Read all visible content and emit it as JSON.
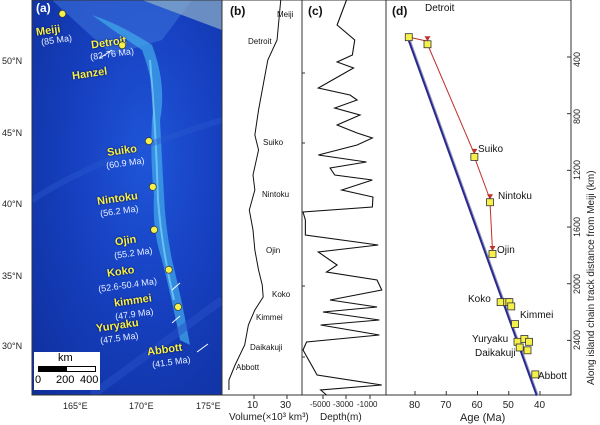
{
  "panels": {
    "a": "(a)",
    "b": "(b)",
    "c": "(c)",
    "d": "(d)"
  },
  "map": {
    "lat_ticks": [
      "50°N",
      "45°N",
      "40°N",
      "35°N",
      "30°N"
    ],
    "lon_ticks": [
      "165°E",
      "170°E",
      "175°E"
    ],
    "scale_unit": "km",
    "scale_labels": [
      "0",
      "200",
      "400"
    ],
    "volcanoes": [
      {
        "name": "Meiji",
        "age": "(85 Ma)",
        "lon": 163.9,
        "lat": 53.3
      },
      {
        "name": "Detroit",
        "age": "(82-76 Ma)",
        "lon": 168.4,
        "lat": 51.1
      },
      {
        "name": "Hanzel",
        "age": ""
      },
      {
        "name": "Suiko",
        "age": "(60.9 Ma)",
        "lon": 170.4,
        "lat": 44.4
      },
      {
        "name": "Nintoku",
        "age": "(56.2 Ma)",
        "lon": 170.7,
        "lat": 41.2
      },
      {
        "name": "Ojin",
        "age": "(55.2 Ma)",
        "lon": 170.8,
        "lat": 38.2
      },
      {
        "name": "Koko",
        "age": "(52.6-50.4 Ma)",
        "lon": 171.9,
        "lat": 35.4
      },
      {
        "name": "kimmei",
        "age": "(47.9 Ma)"
      },
      {
        "name": "Yuryaku",
        "age": "(47.5 Ma)",
        "lon": 172.6,
        "lat": 32.8
      },
      {
        "name": "Abbott",
        "age": "(41.5 Ma)"
      }
    ],
    "colors": {
      "marker": "#f5f04a",
      "label": "#f5f04a",
      "ocean": "#1640c0"
    }
  },
  "chart_data": [
    {
      "type": "line",
      "panel": "b",
      "xlabel": "Volume(×10³ km³)",
      "xticks": [
        "10",
        "30"
      ],
      "labels": [
        "Meiji",
        "Detroit",
        "Suiko",
        "Nintoku",
        "Ojin",
        "Koko",
        "Kimmei",
        "Daikakuji",
        "Abbott"
      ],
      "points": [
        [
          0,
          25
        ],
        [
          40,
          23
        ],
        [
          60,
          18
        ],
        [
          90,
          15
        ],
        [
          110,
          13
        ],
        [
          135,
          11
        ],
        [
          150,
          13
        ],
        [
          175,
          10
        ],
        [
          190,
          11
        ],
        [
          210,
          8
        ],
        [
          230,
          10
        ],
        [
          250,
          11
        ],
        [
          270,
          13
        ],
        [
          285,
          15
        ],
        [
          297,
          15.5
        ],
        [
          310,
          11
        ],
        [
          325,
          7.5
        ],
        [
          345,
          5.5
        ],
        [
          365,
          0.3
        ],
        [
          380,
          -3
        ],
        [
          390,
          -3
        ]
      ]
    },
    {
      "type": "line",
      "panel": "c",
      "xlabel": "Depth(m)",
      "xticks": [
        "-5000",
        "-3000",
        "-1000"
      ],
      "xlim": [
        -6700,
        300
      ],
      "profile_depth_m": [
        -3000,
        -3800,
        -2300,
        -2500,
        -3800,
        -2400,
        -4200,
        -5400,
        -2700,
        -2100,
        -4000,
        -1850,
        -3800,
        -2100,
        -800,
        -2100,
        -5400,
        -1300,
        -4400,
        -4000,
        -800,
        -3400,
        -750,
        -800,
        -6700,
        -6500,
        -6500,
        -300,
        -5400,
        -3800,
        -4700,
        -400,
        0,
        -4400,
        -400,
        -5000,
        -200,
        -5200,
        -200,
        -6400,
        -6700,
        -5500,
        0,
        -5200,
        -4700
      ],
      "profile_y_index": [
        0,
        25,
        40,
        55,
        62,
        68,
        80,
        88,
        95,
        100,
        108,
        115,
        125,
        133,
        138,
        145,
        155,
        162,
        168,
        175,
        180,
        190,
        197,
        207,
        212,
        220,
        235,
        245,
        252,
        265,
        272,
        280,
        290,
        300,
        307,
        312,
        320,
        325,
        335,
        342,
        350,
        375,
        385,
        390,
        395
      ]
    },
    {
      "type": "scatter",
      "panel": "d",
      "xlabel": "Age (Ma)",
      "ylabel": "Along island chain track distance from Meiji  (km)",
      "xticks": [
        "80",
        "70",
        "60",
        "50",
        "40"
      ],
      "yticks": [
        "400",
        "800",
        "1200",
        "1600",
        "2000",
        "2400"
      ],
      "xlim": [
        89,
        29
      ],
      "ylim": [
        0,
        2785
      ],
      "points": [
        {
          "age": 82,
          "d": 260
        },
        {
          "age": 76,
          "d": 310,
          "label": "Detroit"
        },
        {
          "age": 61,
          "d": 1105,
          "label": "Suiko"
        },
        {
          "age": 56,
          "d": 1425,
          "label": "Nintoku"
        },
        {
          "age": 55.2,
          "d": 1790,
          "label": "Ojin"
        },
        {
          "age": 52.6,
          "d": 2130,
          "label": "Koko"
        },
        {
          "age": 50.5,
          "d": 2130
        },
        {
          "age": 49.8,
          "d": 2130
        },
        {
          "age": 49.2,
          "d": 2160
        },
        {
          "age": 48,
          "d": 2285,
          "label": "Kimmei"
        },
        {
          "age": 47.2,
          "d": 2410,
          "label": "Yuryaku"
        },
        {
          "age": 46.5,
          "d": 2450,
          "label": "Daikakuji"
        },
        {
          "age": 45,
          "d": 2390
        },
        {
          "age": 43.5,
          "d": 2410
        },
        {
          "age": 44,
          "d": 2470
        },
        {
          "age": 41.5,
          "d": 2640,
          "label": "Abbott"
        }
      ],
      "trend_line": [
        [
          82.5,
          250
        ],
        [
          41,
          2790
        ]
      ],
      "arrow_path": [
        0,
        1,
        2,
        3,
        4
      ],
      "colors": {
        "marker": "#f5f04a",
        "arrow": "#c0302a",
        "trend": "#2a2a8c"
      }
    }
  ]
}
